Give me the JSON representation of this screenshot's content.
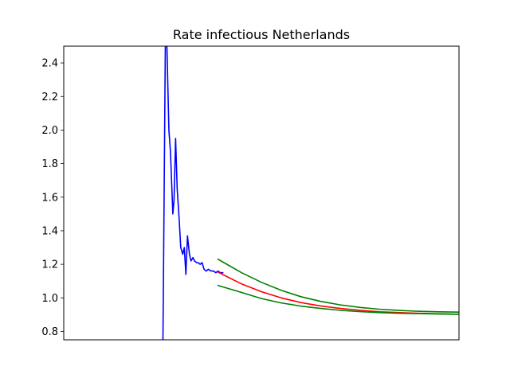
{
  "chart_data": {
    "type": "line",
    "title": "Rate infectious Netherlands",
    "xlabel": "",
    "ylabel": "",
    "xlim": [
      0,
      100
    ],
    "ylim": [
      0.75,
      2.5
    ],
    "x_ticks_shown": false,
    "yticks": [
      "0.8",
      "1.0",
      "1.2",
      "1.4",
      "1.6",
      "1.8",
      "2.0",
      "2.2",
      "2.4"
    ],
    "grid": false,
    "legend": "none",
    "series": [
      {
        "color": "#0000ff",
        "x": [
          25.1,
          25.7,
          26.1,
          26.6,
          27.0,
          27.6,
          27.9,
          28.3,
          28.7,
          29.2,
          29.6,
          30.1,
          30.5,
          30.9,
          31.3,
          31.8,
          32.2,
          32.7,
          33.1,
          33.6,
          34.0,
          34.5,
          35.0,
          35.5,
          36.0,
          36.6,
          37.3,
          37.9,
          38.5,
          39.0,
          39.6,
          40.4
        ],
        "y": [
          0.75,
          2.5,
          2.5,
          2.0,
          1.87,
          1.5,
          1.58,
          1.95,
          1.65,
          1.47,
          1.3,
          1.26,
          1.3,
          1.14,
          1.37,
          1.26,
          1.22,
          1.24,
          1.22,
          1.21,
          1.21,
          1.2,
          1.21,
          1.17,
          1.16,
          1.17,
          1.16,
          1.16,
          1.15,
          1.16,
          1.15,
          1.15
        ]
      },
      {
        "color": "#ff0000",
        "x": [
          38.9,
          45,
          50,
          55,
          60,
          65,
          70,
          75,
          80,
          85,
          90,
          95,
          100
        ],
        "y": [
          1.155,
          1.083,
          1.037,
          1.0,
          0.972,
          0.952,
          0.937,
          0.926,
          0.917,
          0.912,
          0.908,
          0.905,
          0.903
        ]
      },
      {
        "color": "#008000",
        "x": [
          38.9,
          45,
          50,
          55,
          60,
          65,
          70,
          75,
          80,
          85,
          90,
          95,
          100
        ],
        "y": [
          1.232,
          1.15,
          1.093,
          1.045,
          1.007,
          0.979,
          0.958,
          0.943,
          0.932,
          0.925,
          0.92,
          0.917,
          0.915
        ]
      },
      {
        "color": "#008000",
        "x": [
          38.9,
          45,
          50,
          55,
          60,
          65,
          70,
          75,
          80,
          85,
          90,
          95,
          100
        ],
        "y": [
          1.075,
          1.032,
          0.996,
          0.97,
          0.951,
          0.937,
          0.926,
          0.918,
          0.912,
          0.908,
          0.906,
          0.904,
          0.902
        ]
      }
    ]
  }
}
